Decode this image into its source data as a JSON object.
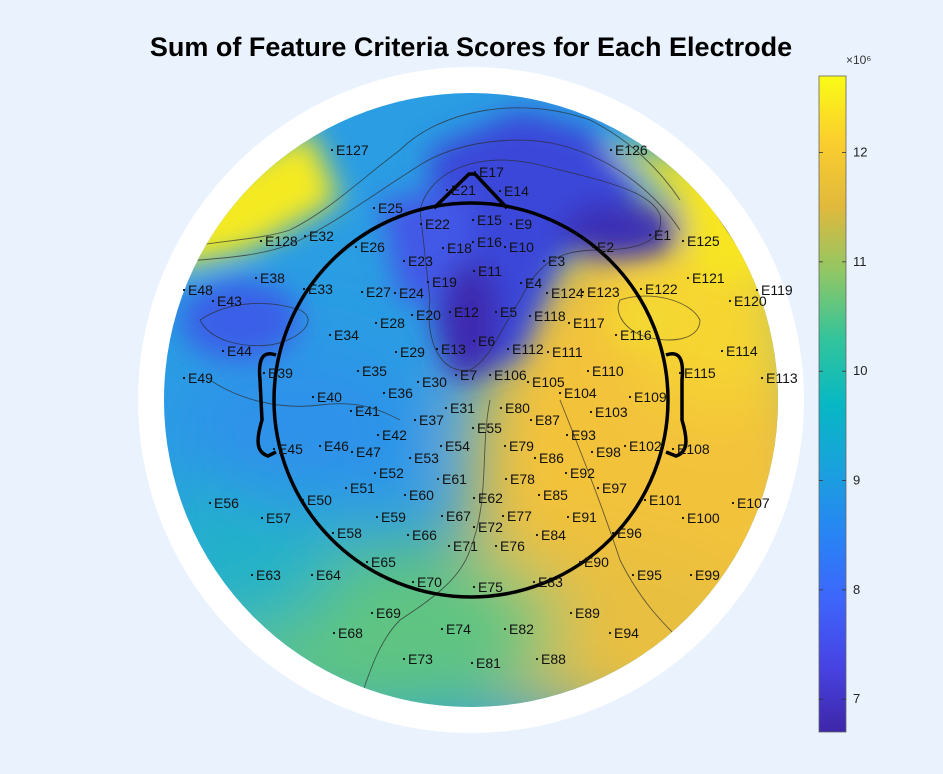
{
  "chart_data": {
    "type": "heatmap",
    "subtype": "eeg-topoplot",
    "title": "Sum of Feature Criteria Scores for Each Electrode",
    "colormap": "parula",
    "colorbar": {
      "min": 6.7,
      "max": 12.7,
      "ticks": [
        7,
        8,
        9,
        10,
        11,
        12
      ],
      "tick_labels": [
        "7",
        "8",
        "9",
        "10",
        "11",
        "12"
      ],
      "exponent_label": "×10⁶",
      "scale_multiplier": 1000000
    },
    "contours": true,
    "electrodes": [
      "E1",
      "E2",
      "E3",
      "E4",
      "E5",
      "E6",
      "E7",
      "E9",
      "E10",
      "E11",
      "E12",
      "E13",
      "E14",
      "E15",
      "E16",
      "E17",
      "E18",
      "E19",
      "E20",
      "E21",
      "E22",
      "E23",
      "E24",
      "E25",
      "E26",
      "E27",
      "E28",
      "E29",
      "E30",
      "E31",
      "E32",
      "E33",
      "E34",
      "E35",
      "E36",
      "E37",
      "E38",
      "E39",
      "E40",
      "E41",
      "E42",
      "E43",
      "E44",
      "E45",
      "E46",
      "E47",
      "E48",
      "E49",
      "E50",
      "E51",
      "E52",
      "E53",
      "E54",
      "E55",
      "E56",
      "E57",
      "E58",
      "E59",
      "E60",
      "E61",
      "E62",
      "E63",
      "E64",
      "E65",
      "E66",
      "E67",
      "E68",
      "E69",
      "E70",
      "E71",
      "E72",
      "E73",
      "E74",
      "E75",
      "E76",
      "E77",
      "E78",
      "E79",
      "E80",
      "E81",
      "E82",
      "E83",
      "E84",
      "E85",
      "E86",
      "E87",
      "E88",
      "E89",
      "E90",
      "E91",
      "E92",
      "E93",
      "E94",
      "E95",
      "E96",
      "E97",
      "E98",
      "E99",
      "E100",
      "E101",
      "E102",
      "E103",
      "E104",
      "E105",
      "E106",
      "E107",
      "E108",
      "E109",
      "E110",
      "E111",
      "E112",
      "E113",
      "E114",
      "E115",
      "E116",
      "E117",
      "E118",
      "E119",
      "E120",
      "E121",
      "E122",
      "E123",
      "E124",
      "E125",
      "E126",
      "E127",
      "E128"
    ]
  }
}
